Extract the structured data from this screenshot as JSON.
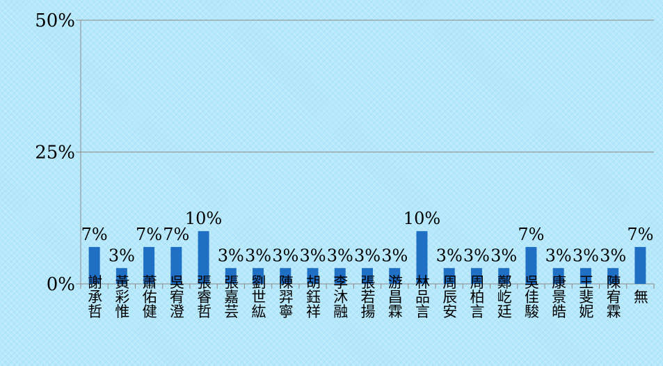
{
  "chart_data": {
    "type": "bar",
    "categories": [
      "謝承哲",
      "黃彩惟",
      "蕭佑健",
      "吳宥澄",
      "張睿哲",
      "張嘉芸",
      "劉世紘",
      "陳羿寧",
      "胡鈺祥",
      "李沐融",
      "張若揚",
      "游昌霖",
      "林品言",
      "周辰安",
      "周柏言",
      "鄭屹廷",
      "吳佳駿",
      "康景皓",
      "王斐妮",
      "陳宥霖",
      "無"
    ],
    "values": [
      7,
      3,
      7,
      7,
      10,
      3,
      3,
      3,
      3,
      3,
      3,
      3,
      10,
      3,
      3,
      3,
      7,
      3,
      3,
      3,
      7
    ],
    "data_labels": [
      "7%",
      "3%",
      "7%",
      "7%",
      "10%",
      "3%",
      "3%",
      "3%",
      "3%",
      "3%",
      "3%",
      "3%",
      "10%",
      "3%",
      "3%",
      "3%",
      "7%",
      "3%",
      "3%",
      "3%",
      "7%"
    ],
    "y_ticks": [
      0,
      25,
      50
    ],
    "y_tick_labels": [
      "0%",
      "25%",
      "50%"
    ],
    "ylim": [
      0,
      50
    ],
    "gridlines": true,
    "bar_color": "#1f6fc5",
    "title": "",
    "xlabel": "",
    "ylabel": ""
  }
}
